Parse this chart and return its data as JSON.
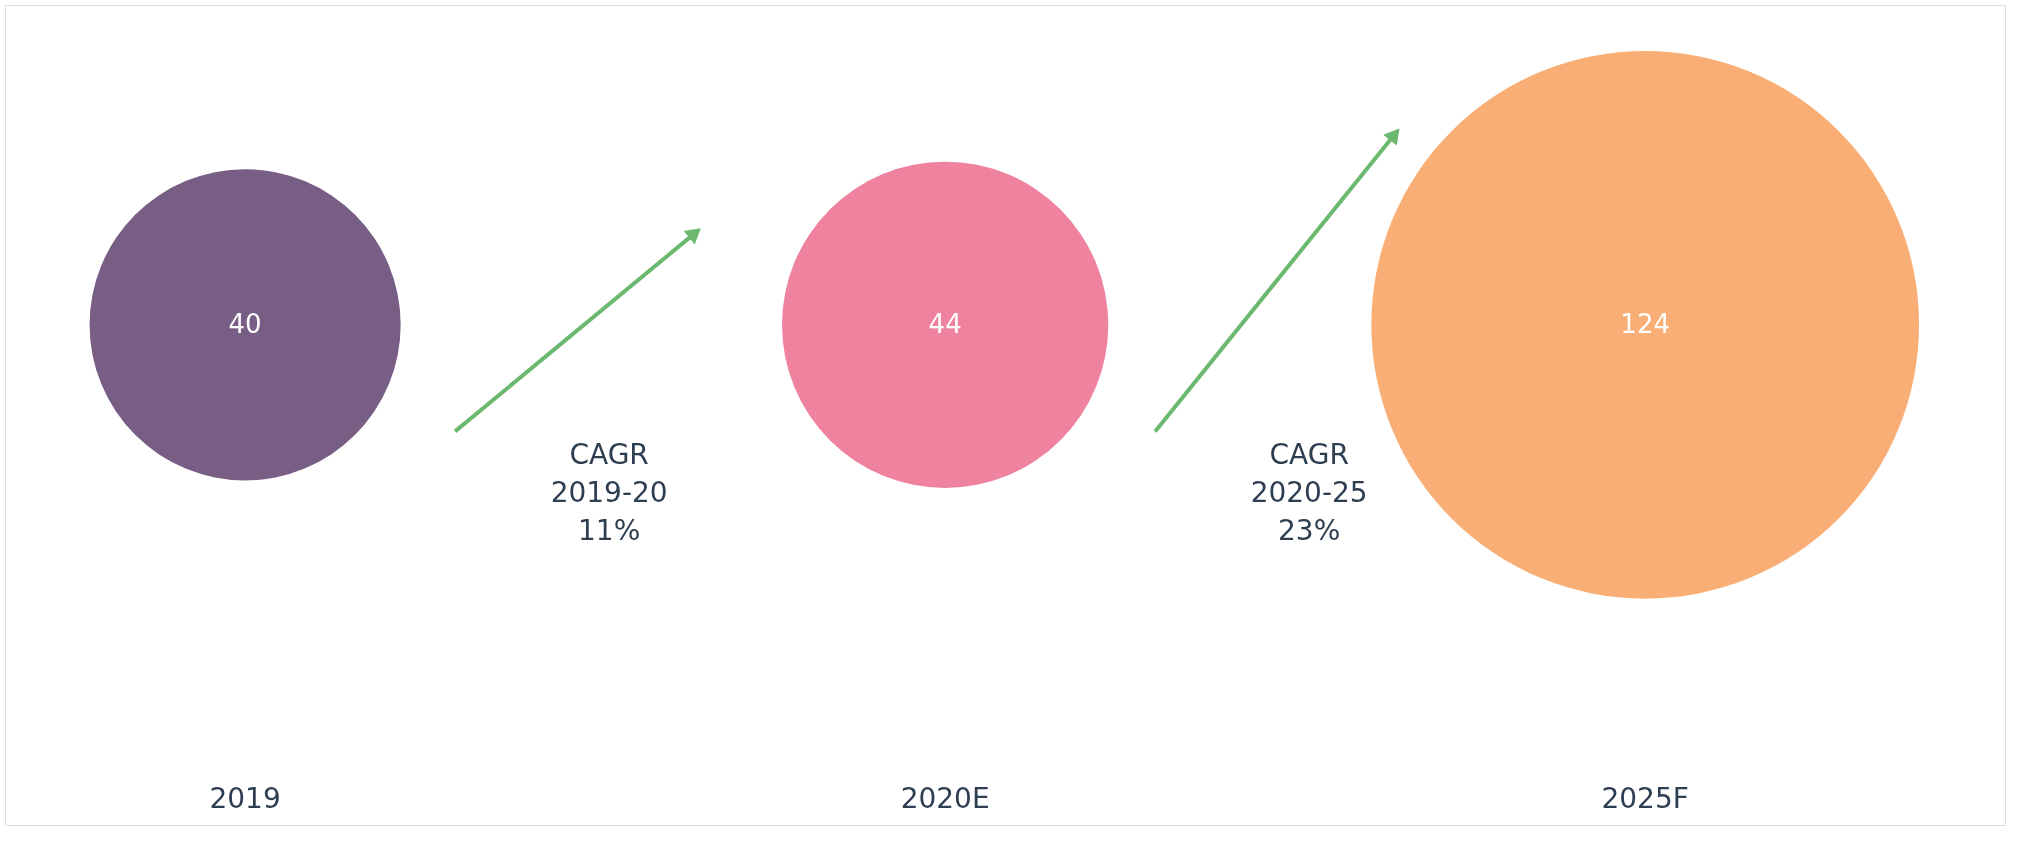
{
  "chart_data": {
    "type": "other",
    "categories": [
      "2019",
      "2020E",
      "2025F"
    ],
    "values": [
      40,
      44,
      124
    ],
    "colors": [
      "#785d84",
      "#ee829f",
      "#f8ae74"
    ],
    "data_labels": true,
    "annotations": [
      "CAGR 2019-20 11%",
      "CAGR 2020-25 23%"
    ]
  }
}
